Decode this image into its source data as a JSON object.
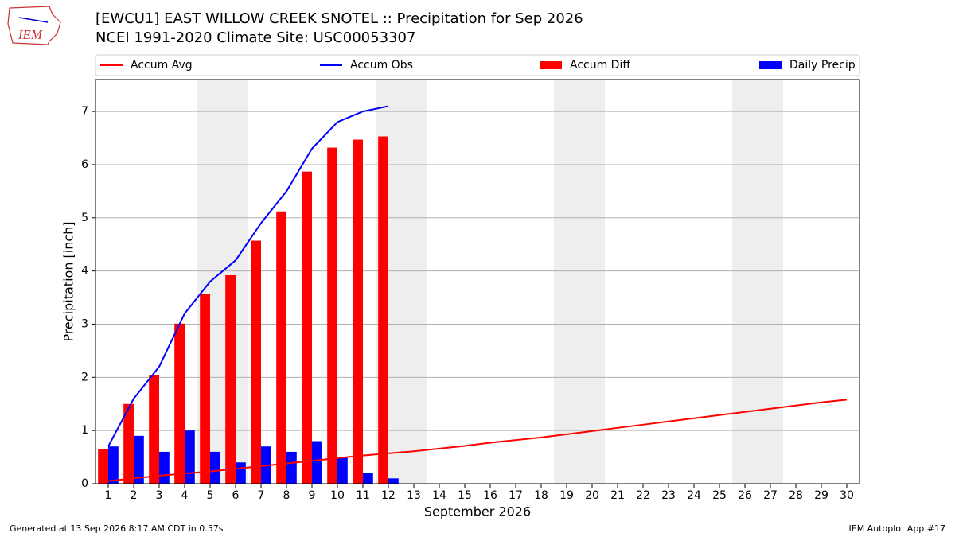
{
  "chart_data": {
    "type": "bar_line",
    "title": "[EWCU1] EAST WILLOW CREEK SNOTEL :: Precipitation for Sep 2026",
    "subtitle": "NCEI 1991-2020 Climate Site: USC00053307",
    "logo_text": "IEM",
    "xlabel": "September 2026",
    "ylabel": "Precipitation [inch]",
    "footer_left": "Generated at 13 Sep 2026 8:17 AM CDT in 0.57s",
    "footer_right": "IEM Autoplot App #17",
    "x": [
      1,
      2,
      3,
      4,
      5,
      6,
      7,
      8,
      9,
      10,
      11,
      12,
      13,
      14,
      15,
      16,
      17,
      18,
      19,
      20,
      21,
      22,
      23,
      24,
      25,
      26,
      27,
      28,
      29,
      30
    ],
    "xlim": [
      0.5,
      30.5
    ],
    "xticks": [
      1,
      2,
      3,
      4,
      5,
      6,
      7,
      8,
      9,
      10,
      11,
      12,
      13,
      14,
      15,
      16,
      17,
      18,
      19,
      20,
      21,
      22,
      23,
      24,
      25,
      26,
      27,
      28,
      29,
      30
    ],
    "ylim": [
      0,
      7.6
    ],
    "yticks": [
      0,
      1,
      2,
      3,
      4,
      5,
      6,
      7
    ],
    "grid": true,
    "shaded_days": [
      5,
      6,
      12,
      13,
      19,
      20,
      26,
      27
    ],
    "shade_color": "#eeeeee",
    "series": [
      {
        "name": "Accum Avg",
        "kind": "line",
        "color": "#ff0000",
        "values": [
          0.05,
          0.1,
          0.15,
          0.19,
          0.23,
          0.28,
          0.33,
          0.38,
          0.43,
          0.48,
          0.53,
          0.57,
          0.61,
          0.66,
          0.71,
          0.77,
          0.82,
          0.87,
          0.93,
          0.99,
          1.05,
          1.11,
          1.17,
          1.23,
          1.29,
          1.35,
          1.41,
          1.47,
          1.53,
          1.58
        ]
      },
      {
        "name": "Accum Obs",
        "kind": "line",
        "color": "#0000ff",
        "values": [
          0.7,
          1.6,
          2.2,
          3.2,
          3.8,
          4.2,
          4.9,
          5.5,
          6.3,
          6.8,
          7.0,
          7.1,
          null,
          null,
          null,
          null,
          null,
          null,
          null,
          null,
          null,
          null,
          null,
          null,
          null,
          null,
          null,
          null,
          null,
          null
        ]
      },
      {
        "name": "Accum Diff",
        "kind": "bar",
        "side": "left",
        "color": "#ff0000",
        "values": [
          0.65,
          1.5,
          2.05,
          3.01,
          3.57,
          3.92,
          4.57,
          5.12,
          5.87,
          6.32,
          6.47,
          6.53,
          null,
          null,
          null,
          null,
          null,
          null,
          null,
          null,
          null,
          null,
          null,
          null,
          null,
          null,
          null,
          null,
          null,
          null
        ]
      },
      {
        "name": "Daily Precip",
        "kind": "bar",
        "side": "right",
        "color": "#0000ff",
        "values": [
          0.7,
          0.9,
          0.6,
          1.0,
          0.6,
          0.4,
          0.7,
          0.6,
          0.8,
          0.5,
          0.2,
          0.1,
          null,
          null,
          null,
          null,
          null,
          null,
          null,
          null,
          null,
          null,
          null,
          null,
          null,
          null,
          null,
          null,
          null,
          null
        ]
      }
    ]
  }
}
